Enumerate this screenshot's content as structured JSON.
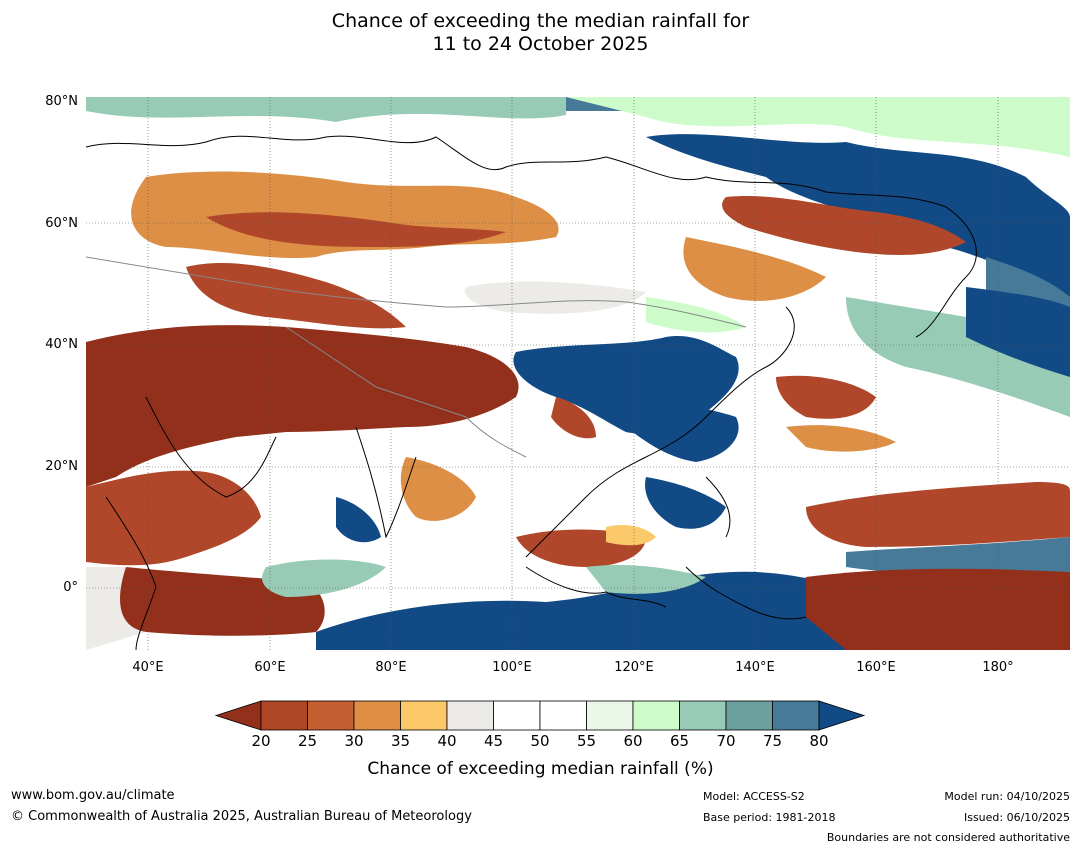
{
  "title": {
    "line1": "Chance of exceeding the median rainfall for",
    "line2": "11 to 24 October 2025"
  },
  "map": {
    "lat_labels": [
      "80°N",
      "60°N",
      "40°N",
      "20°N",
      "0°"
    ],
    "lon_labels": [
      "40°E",
      "60°E",
      "80°E",
      "100°E",
      "120°E",
      "140°E",
      "160°E",
      "180°"
    ],
    "colors": {
      "ocean_blue_dark": "#124a85",
      "brown_dark": "#93301c",
      "brown": "#b0472a",
      "orange": "#dc8f45",
      "yellow": "#fcc96a",
      "grey": "#ecebe7",
      "white": "#ffffff",
      "light_green": "#cdfcca",
      "teal": "#98cbb6",
      "teal_dark": "#6ba09f",
      "steel": "#477a99"
    }
  },
  "colorbar": {
    "ticks": [
      "20",
      "25",
      "30",
      "35",
      "40",
      "45",
      "50",
      "55",
      "60",
      "65",
      "70",
      "75",
      "80"
    ],
    "colors": [
      "#ae4726",
      "#c55e31",
      "#df8f45",
      "#fcc96a",
      "#ecebe7",
      "#ffffff",
      "#ffffff",
      "#eaf6e8",
      "#cdfcca",
      "#98cbb6",
      "#6ba09f",
      "#477a99"
    ],
    "under_color": "#93301c",
    "over_color": "#124a85",
    "label": "Chance of exceeding median rainfall (%)"
  },
  "footer": {
    "website": "www.bom.gov.au/climate",
    "copyright": "© Commonwealth of Australia 2025, Australian Bureau of Meteorology",
    "model": "Model: ACCESS-S2",
    "base_period": "Base period: 1981-2018",
    "model_run": "Model run: 04/10/2025",
    "issued": "Issued: 06/10/2025",
    "boundaries_note": "Boundaries are not considered authoritative"
  }
}
